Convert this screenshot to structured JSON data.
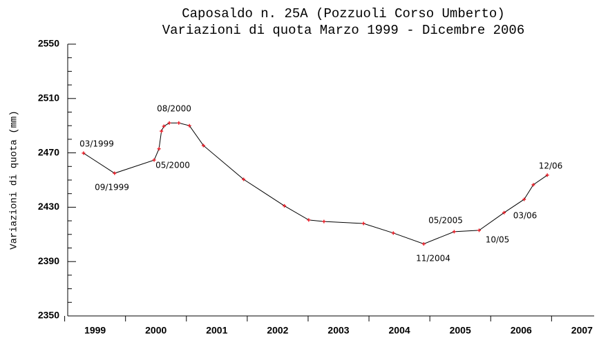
{
  "chart_data": {
    "type": "line",
    "title": "Caposaldo n. 25A (Pozzuoli Corso Umberto)",
    "subtitle": "Variazioni di quota Marzo 1999 - Dicembre 2006",
    "y_label": "Variazioni di quota (mm)",
    "x": [
      1999.31,
      1999.82,
      2000.47,
      2000.55,
      2000.59,
      2000.63,
      2000.72,
      2000.875,
      2001.05,
      2001.28,
      2001.94,
      2002.61,
      2003.01,
      2003.26,
      2003.91,
      2004.4,
      2004.9,
      2005.4,
      2005.81,
      2006.22,
      2006.55,
      2006.7,
      2006.93
    ],
    "series": [
      {
        "name": "Caposaldo 25A",
        "color": "#000000",
        "marker_color": "#e8202a",
        "values": [
          2469.8,
          2455,
          2464.7,
          2473,
          2486,
          2489.6,
          2492,
          2492,
          2490,
          2475.4,
          2450.5,
          2431,
          2420.6,
          2419.5,
          2418,
          2411,
          2403,
          2412,
          2413,
          2426,
          2435.8,
          2446.5,
          2453.6
        ]
      }
    ],
    "xlim": [
      1999.05,
      2007.7
    ],
    "xticks": [
      1999,
      2000,
      2001,
      2002,
      2003,
      2004,
      2005,
      2006,
      2007
    ],
    "ylim": [
      2350,
      2550
    ],
    "yticks": [
      2350,
      2390,
      2430,
      2470,
      2510,
      2550
    ],
    "annotations": [
      "03/1999",
      "09/1999",
      "08/2000",
      "05/2000",
      "05/2005",
      "11/2004",
      "10/05",
      "03/06",
      "12/06"
    ]
  }
}
